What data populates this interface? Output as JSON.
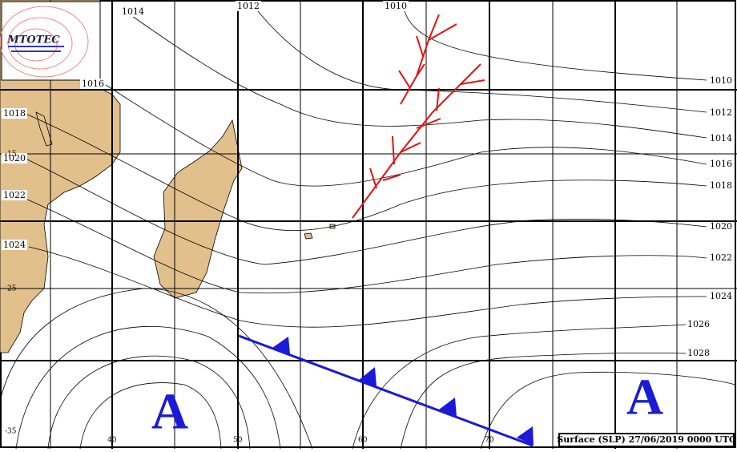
{
  "logo": "MTOTEC",
  "isobar_labels": {
    "top": [
      "1014",
      "1012",
      "1010"
    ],
    "left": [
      "1016",
      "1018",
      "1020",
      "1022",
      "1024"
    ],
    "right": [
      "1010",
      "1012",
      "1014",
      "1016",
      "1018",
      "1020",
      "1022",
      "1024",
      "1026",
      "1028"
    ]
  },
  "latitudes": [
    "-15",
    "-25",
    "-35"
  ],
  "longitudes": [
    "40",
    "50",
    "60",
    "70"
  ],
  "highs": [
    "A",
    "A"
  ],
  "caption": "Surface (SLP) 27/06/2019 0000 UTC"
}
